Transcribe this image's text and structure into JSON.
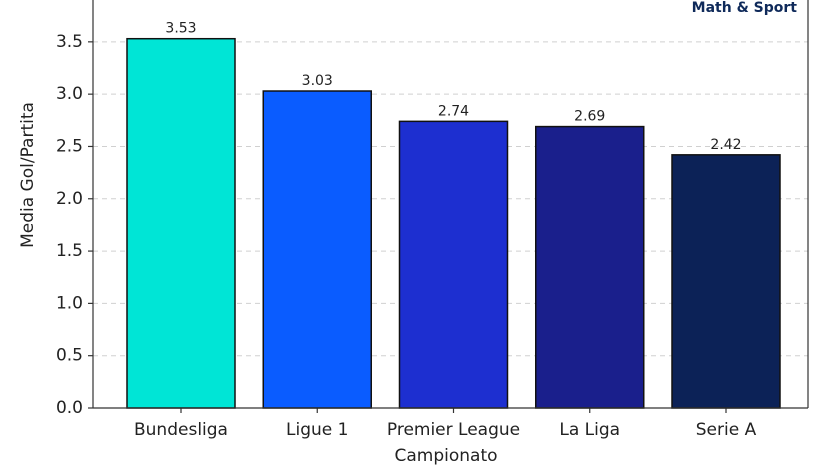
{
  "chart_data": {
    "type": "bar",
    "watermark": "Math & Sport",
    "x_label": "Campionato",
    "y_label": "Media Gol/Partita",
    "categories": [
      "Bundesliga",
      "Ligue 1",
      "Premier League",
      "La Liga",
      "Serie A"
    ],
    "values": [
      3.53,
      3.03,
      2.74,
      2.69,
      2.42
    ],
    "colors": [
      "#00e5d6",
      "#0a5cff",
      "#1d2fd0",
      "#1a1f8c",
      "#0c2257"
    ],
    "ylim": [
      0,
      3.9
    ],
    "yticks": [
      {
        "value": 0,
        "label": "0.0"
      },
      0.5,
      {
        "value": 1,
        "label": "1.0"
      },
      1.5,
      {
        "value": 2,
        "label": "2.0"
      },
      2.5,
      {
        "value": 3,
        "label": "3.0"
      },
      3.5
    ],
    "grid": true
  }
}
